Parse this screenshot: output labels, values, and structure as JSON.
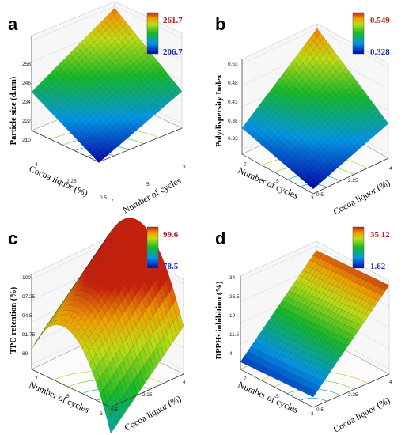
{
  "panels": [
    {
      "letter": "a",
      "ylabel": "Particle size (d.nm)",
      "colorbar": {
        "max": "261.7",
        "min": "206.7"
      },
      "z_ticks": [
        "258",
        "246",
        "234",
        "222",
        "210"
      ],
      "left_axis": {
        "title": "Cocoa liquor (%)",
        "ticks": [
          "4",
          "2.25",
          "0.5"
        ]
      },
      "right_axis": {
        "title": "Number of cycles",
        "ticks": [
          "3",
          "5",
          "7"
        ]
      }
    },
    {
      "letter": "b",
      "ylabel": "Polydispersity Index",
      "colorbar": {
        "max": "0.549",
        "min": "0.328"
      },
      "z_ticks": [
        "0.53",
        "0.48",
        "0.43",
        "0.38",
        "0.33"
      ],
      "left_axis": {
        "title": "Number of cycles",
        "ticks": [
          "7",
          "5",
          "3"
        ]
      },
      "right_axis": {
        "title": "Cocoa liquor (%)",
        "ticks": [
          "0.5",
          "2.25",
          "4"
        ]
      }
    },
    {
      "letter": "c",
      "ylabel": "TPC retention (%)",
      "colorbar": {
        "max": "99.6",
        "min": "78.5"
      },
      "z_ticks": [
        "100",
        "97.25",
        "94.5",
        "91.75",
        "89"
      ],
      "left_axis": {
        "title": "Number of cycles",
        "ticks": [
          "7",
          "5",
          "3"
        ]
      },
      "right_axis": {
        "title": "Cocoa liquor (%)",
        "ticks": [
          "0.5",
          "2.25",
          "4"
        ]
      }
    },
    {
      "letter": "d",
      "ylabel": "DPPH• inhibition (%)",
      "colorbar": {
        "max": "35.12",
        "min": "1.62"
      },
      "z_ticks": [
        "34",
        "26.5",
        "19",
        "11.5",
        "4"
      ],
      "left_axis": {
        "title": "Number of cycles",
        "ticks": [
          "7",
          "5",
          "3"
        ]
      },
      "right_axis": {
        "title": "Cocoa liquor (%)",
        "ticks": [
          "0.5",
          "2.25",
          "4"
        ]
      }
    }
  ],
  "chart_data": [
    {
      "type": "surface",
      "panel": "a",
      "z_label": "Particle size (d.nm)",
      "x_label": "Cocoa liquor (%)",
      "x_ticks": [
        4,
        2.25,
        0.5
      ],
      "y_label": "Number of cycles",
      "y_ticks": [
        3,
        5,
        7
      ],
      "z_ticks": [
        258,
        246,
        234,
        222,
        210
      ],
      "z_range": [
        206.7,
        261.7
      ],
      "corner_values": {
        "back": 257,
        "left": 229,
        "right": 228,
        "front": 207
      },
      "shape": "saddle-like surface rising to the back corner, lowest at the front corner",
      "colormap": "blue-green-yellow-red"
    },
    {
      "type": "surface",
      "panel": "b",
      "z_label": "Polydispersity Index",
      "x_label": "Number of cycles",
      "x_ticks": [
        7,
        5,
        3
      ],
      "y_label": "Cocoa liquor (%)",
      "y_ticks": [
        0.5,
        2.25,
        4
      ],
      "z_ticks": [
        0.53,
        0.48,
        0.43,
        0.38,
        0.33
      ],
      "z_range": [
        0.328,
        0.549
      ],
      "corner_values": {
        "back": 0.53,
        "left": 0.38,
        "right": 0.4,
        "front": 0.33
      },
      "shape": "surface rising toward the back corner",
      "colormap": "blue-green-yellow-red"
    },
    {
      "type": "surface",
      "panel": "c",
      "z_label": "TPC retention (%)",
      "x_label": "Number of cycles",
      "x_ticks": [
        7,
        5,
        3
      ],
      "y_label": "Cocoa liquor (%)",
      "y_ticks": [
        0.5,
        2.25,
        4
      ],
      "z_ticks": [
        100,
        97.25,
        94.5,
        91.75,
        89
      ],
      "z_range": [
        78.5,
        99.6
      ],
      "corner_values": {
        "back": 91.5,
        "left": 91,
        "right": 92.5,
        "front": 85
      },
      "ridge_peak": 99.6,
      "shape": "arched ridge peaking at intermediate cocoa liquor",
      "colormap": "blue-green-yellow-red"
    },
    {
      "type": "surface",
      "panel": "d",
      "z_label": "DPPH• inhibition (%)",
      "x_label": "Number of cycles",
      "x_ticks": [
        7,
        5,
        3
      ],
      "y_label": "Cocoa liquor (%)",
      "y_ticks": [
        0.5,
        2.25,
        4
      ],
      "z_ticks": [
        34,
        26.5,
        19,
        11.5,
        4
      ],
      "z_range": [
        1.62,
        35.12
      ],
      "corner_values": {
        "back": 33,
        "left": 5,
        "right": 34,
        "front": 6
      },
      "shape": "plane rising steeply with cocoa liquor",
      "colormap": "blue-green-yellow-red"
    }
  ]
}
